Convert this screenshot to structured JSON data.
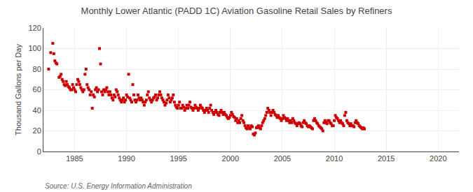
{
  "chart_data": {
    "type": "scatter",
    "title": "Monthly Lower Atlantic (PADD 1C) Aviation Gasoline Retail Sales by Refiners",
    "y_label": "Thousand Gallons per Day",
    "annotations": [
      "Source: U.S. Energy Information Administration"
    ],
    "color": "#cc0000",
    "marker": "square",
    "grid": true,
    "xlim": [
      1982.0,
      2022.0
    ],
    "ylim": [
      0,
      120
    ],
    "xticks": [
      1985,
      1990,
      1995,
      2000,
      2005,
      2010,
      2015,
      2020
    ],
    "yticks": [
      0,
      20,
      40,
      60,
      80,
      100,
      120
    ],
    "x": [
      1982.5,
      1982.7,
      1982.9,
      1983.0,
      1983.1,
      1983.2,
      1983.3,
      1983.5,
      1983.6,
      1983.7,
      1983.8,
      1983.9,
      1984.0,
      1984.1,
      1984.2,
      1984.3,
      1984.4,
      1984.5,
      1984.6,
      1984.7,
      1984.8,
      1984.9,
      1985.0,
      1985.1,
      1985.2,
      1985.3,
      1985.4,
      1985.5,
      1985.6,
      1985.7,
      1985.8,
      1985.9,
      1986.0,
      1986.1,
      1986.2,
      1986.3,
      1986.4,
      1986.5,
      1986.6,
      1986.7,
      1986.8,
      1986.9,
      1987.0,
      1987.1,
      1987.2,
      1987.3,
      1987.4,
      1987.5,
      1987.6,
      1987.7,
      1987.8,
      1987.9,
      1988.0,
      1988.1,
      1988.2,
      1988.3,
      1988.4,
      1988.5,
      1988.6,
      1988.7,
      1988.8,
      1988.9,
      1989.0,
      1989.1,
      1989.2,
      1989.3,
      1989.4,
      1989.5,
      1989.6,
      1989.7,
      1989.8,
      1989.9,
      1990.0,
      1990.1,
      1990.2,
      1990.3,
      1990.4,
      1990.5,
      1990.6,
      1990.7,
      1990.8,
      1990.9,
      1991.0,
      1991.1,
      1991.2,
      1991.3,
      1991.4,
      1991.5,
      1991.6,
      1991.7,
      1991.8,
      1991.9,
      1992.0,
      1992.1,
      1992.2,
      1992.3,
      1992.4,
      1992.5,
      1992.6,
      1992.7,
      1992.8,
      1992.9,
      1993.0,
      1993.1,
      1993.2,
      1993.3,
      1993.4,
      1993.5,
      1993.6,
      1993.7,
      1993.8,
      1993.9,
      1994.0,
      1994.1,
      1994.2,
      1994.3,
      1994.4,
      1994.5,
      1994.6,
      1994.7,
      1994.8,
      1994.9,
      1995.0,
      1995.1,
      1995.2,
      1995.3,
      1995.4,
      1995.5,
      1995.6,
      1995.7,
      1995.8,
      1995.9,
      1996.0,
      1996.1,
      1996.2,
      1996.3,
      1996.4,
      1996.5,
      1996.6,
      1996.7,
      1996.8,
      1996.9,
      1997.0,
      1997.1,
      1997.2,
      1997.3,
      1997.4,
      1997.5,
      1997.6,
      1997.7,
      1997.8,
      1997.9,
      1998.0,
      1998.1,
      1998.2,
      1998.3,
      1998.4,
      1998.5,
      1998.6,
      1998.7,
      1998.8,
      1998.9,
      1999.0,
      1999.1,
      1999.2,
      1999.3,
      1999.4,
      1999.5,
      1999.6,
      1999.7,
      1999.8,
      1999.9,
      2000.0,
      2000.1,
      2000.2,
      2000.3,
      2000.4,
      2000.5,
      2000.6,
      2000.7,
      2000.8,
      2000.9,
      2001.0,
      2001.1,
      2001.2,
      2001.3,
      2001.4,
      2001.5,
      2001.6,
      2001.7,
      2001.8,
      2001.9,
      2002.0,
      2002.1,
      2002.2,
      2002.3,
      2002.4,
      2002.5,
      2002.6,
      2002.7,
      2002.8,
      2002.9,
      2003.0,
      2003.1,
      2003.2,
      2003.3,
      2003.4,
      2003.5,
      2003.6,
      2003.7,
      2003.8,
      2003.9,
      2004.0,
      2004.1,
      2004.2,
      2004.3,
      2004.4,
      2004.5,
      2004.6,
      2004.7,
      2004.8,
      2004.9,
      2005.0,
      2005.1,
      2005.2,
      2005.3,
      2005.4,
      2005.5,
      2005.6,
      2005.7,
      2005.8,
      2005.9,
      2006.0,
      2006.1,
      2006.2,
      2006.3,
      2006.4,
      2006.5,
      2006.6,
      2006.7,
      2006.8,
      2006.9,
      2007.0,
      2007.1,
      2007.2,
      2007.3,
      2007.4,
      2007.5,
      2007.6,
      2007.7,
      2007.8,
      2007.9,
      2008.0,
      2008.1,
      2008.2,
      2008.3,
      2008.4,
      2008.5,
      2008.6,
      2008.7,
      2008.8,
      2008.9,
      2009.0,
      2009.1,
      2009.2,
      2009.3,
      2009.4,
      2009.5,
      2009.6,
      2009.7,
      2009.8,
      2009.9,
      2010.0,
      2010.1,
      2010.2,
      2010.3,
      2010.4,
      2010.5,
      2010.6,
      2010.7,
      2010.8,
      2010.9,
      2011.0,
      2011.1,
      2011.2,
      2011.3,
      2011.4,
      2011.5,
      2011.6,
      2011.7,
      2011.8,
      2011.9,
      2012.0,
      2012.1,
      2012.2,
      2012.3,
      2012.4,
      2012.5,
      2012.6,
      2012.7,
      2012.8,
      2012.9
    ],
    "values": [
      80,
      96,
      105,
      95,
      88,
      86,
      85,
      72,
      73,
      75,
      70,
      68,
      65,
      64,
      68,
      65,
      63,
      62,
      60,
      60,
      65,
      62,
      60,
      58,
      65,
      70,
      68,
      65,
      62,
      60,
      58,
      60,
      75,
      80,
      65,
      62,
      60,
      55,
      58,
      42,
      55,
      53,
      60,
      62,
      58,
      60,
      100,
      85,
      58,
      55,
      60,
      58,
      60,
      62,
      58,
      55,
      58,
      55,
      52,
      50,
      55,
      53,
      60,
      58,
      55,
      52,
      50,
      48,
      50,
      52,
      48,
      50,
      55,
      53,
      75,
      52,
      50,
      48,
      65,
      55,
      50,
      48,
      50,
      55,
      52,
      50,
      52,
      50,
      48,
      45,
      48,
      50,
      55,
      58,
      52,
      50,
      48,
      50,
      52,
      53,
      55,
      50,
      52,
      55,
      58,
      55,
      52,
      50,
      48,
      45,
      47,
      50,
      55,
      52,
      48,
      50,
      52,
      55,
      48,
      45,
      43,
      42,
      45,
      48,
      42,
      42,
      45,
      43,
      40,
      42,
      45,
      42,
      45,
      48,
      43,
      42,
      40,
      42,
      45,
      43,
      42,
      40,
      42,
      45,
      43,
      42,
      40,
      38,
      40,
      42,
      40,
      38,
      42,
      45,
      40,
      38,
      36,
      38,
      40,
      38,
      36,
      35,
      38,
      40,
      38,
      36,
      38,
      36,
      35,
      33,
      32,
      33,
      35,
      38,
      36,
      34,
      33,
      30,
      32,
      28,
      30,
      28,
      32,
      35,
      30,
      28,
      25,
      23,
      22,
      25,
      23,
      22,
      25,
      24,
      17,
      16,
      18,
      23,
      24,
      25,
      23,
      22,
      25,
      28,
      30,
      32,
      35,
      38,
      42,
      40,
      38,
      35,
      38,
      40,
      38,
      36,
      35,
      33,
      35,
      33,
      32,
      30,
      32,
      35,
      33,
      32,
      30,
      32,
      30,
      28,
      30,
      28,
      32,
      30,
      28,
      27,
      25,
      27,
      28,
      27,
      25,
      24,
      28,
      30,
      28,
      27,
      25,
      24,
      25,
      24,
      23,
      22,
      30,
      32,
      30,
      28,
      27,
      25,
      24,
      23,
      22,
      20,
      28,
      30,
      28,
      27,
      30,
      30,
      28,
      27,
      25,
      25,
      30,
      35,
      33,
      32,
      30,
      28,
      30,
      28,
      27,
      25,
      35,
      38,
      30,
      28,
      27,
      25,
      27,
      25,
      25,
      24,
      28,
      30,
      28,
      27,
      25,
      24,
      23,
      22,
      23,
      22
    ]
  }
}
